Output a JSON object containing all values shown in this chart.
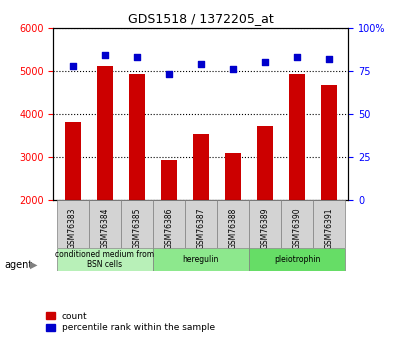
{
  "title": "GDS1518 / 1372205_at",
  "samples": [
    "GSM76383",
    "GSM76384",
    "GSM76385",
    "GSM76386",
    "GSM76387",
    "GSM76388",
    "GSM76389",
    "GSM76390",
    "GSM76391"
  ],
  "counts": [
    3800,
    5100,
    4920,
    2920,
    3540,
    3100,
    3720,
    4920,
    4680
  ],
  "percentiles": [
    78,
    84,
    83,
    73,
    79,
    76,
    80,
    83,
    82
  ],
  "groups": [
    {
      "label": "conditioned medium from\nBSN cells",
      "start": 0,
      "end": 3,
      "color": "#ccffcc"
    },
    {
      "label": "heregulin",
      "start": 3,
      "end": 6,
      "color": "#99ff99"
    },
    {
      "label": "pleiotrophin",
      "start": 6,
      "end": 9,
      "color": "#66ff66"
    }
  ],
  "ylim_left": [
    2000,
    6000
  ],
  "ylim_right": [
    0,
    100
  ],
  "yticks_left": [
    2000,
    3000,
    4000,
    5000,
    6000
  ],
  "yticks_right": [
    0,
    25,
    50,
    75,
    100
  ],
  "bar_color": "#cc0000",
  "dot_color": "#0000cc",
  "bar_width": 0.5,
  "count_label": "count",
  "percentile_label": "percentile rank within the sample",
  "agent_label": "agent",
  "grid_color": "#000000",
  "bg_color": "#ffffff",
  "plot_bg": "#ffffff"
}
